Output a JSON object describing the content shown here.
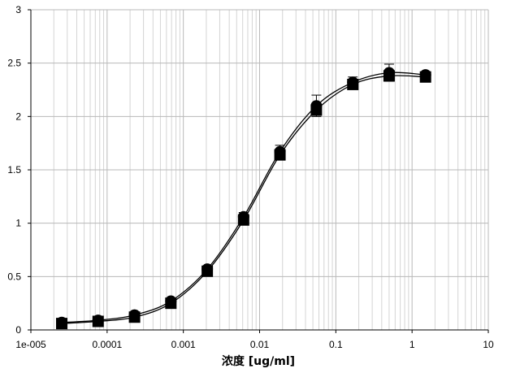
{
  "chart_data": {
    "type": "scatter",
    "title": "",
    "xlabel": "浓度 [ug/ml]",
    "ylabel": "",
    "xscale": "log",
    "xlim": [
      1e-05,
      10
    ],
    "ylim": [
      0,
      3
    ],
    "grid": true,
    "legend": "none",
    "x_ticks": [
      1e-05,
      0.0001,
      0.001,
      0.01,
      0.1,
      1,
      10
    ],
    "x_tick_labels": [
      "1e-005",
      "0.0001",
      "0.001",
      "0.01",
      "0.1",
      "1",
      "10"
    ],
    "y_ticks": [
      0,
      0.5,
      1,
      1.5,
      2,
      2.5,
      3
    ],
    "y_tick_labels": [
      "0",
      "0.5",
      "1",
      "1.5",
      "2",
      "2.5",
      "3"
    ],
    "series": [
      {
        "marker": "square",
        "color": "#000000",
        "x": [
          2.54e-05,
          7.62e-05,
          0.000229,
          0.000686,
          0.00206,
          0.00617,
          0.0185,
          0.0556,
          0.167,
          0.5,
          1.5
        ],
        "y": [
          0.06,
          0.08,
          0.12,
          0.25,
          0.55,
          1.03,
          1.64,
          2.06,
          2.3,
          2.38,
          2.37
        ]
      },
      {
        "marker": "circle",
        "color": "#000000",
        "x": [
          2.54e-05,
          7.62e-05,
          0.000229,
          0.000686,
          0.00206,
          0.00617,
          0.0185,
          0.0556,
          0.167,
          0.5,
          1.5
        ],
        "y": [
          0.07,
          0.09,
          0.14,
          0.27,
          0.57,
          1.06,
          1.67,
          2.1,
          2.32,
          2.41,
          2.39
        ],
        "error": [
          0.01,
          0.01,
          0.02,
          0.02,
          0.03,
          0.04,
          0.06,
          0.1,
          0.05,
          0.08,
          0.03
        ]
      }
    ]
  }
}
